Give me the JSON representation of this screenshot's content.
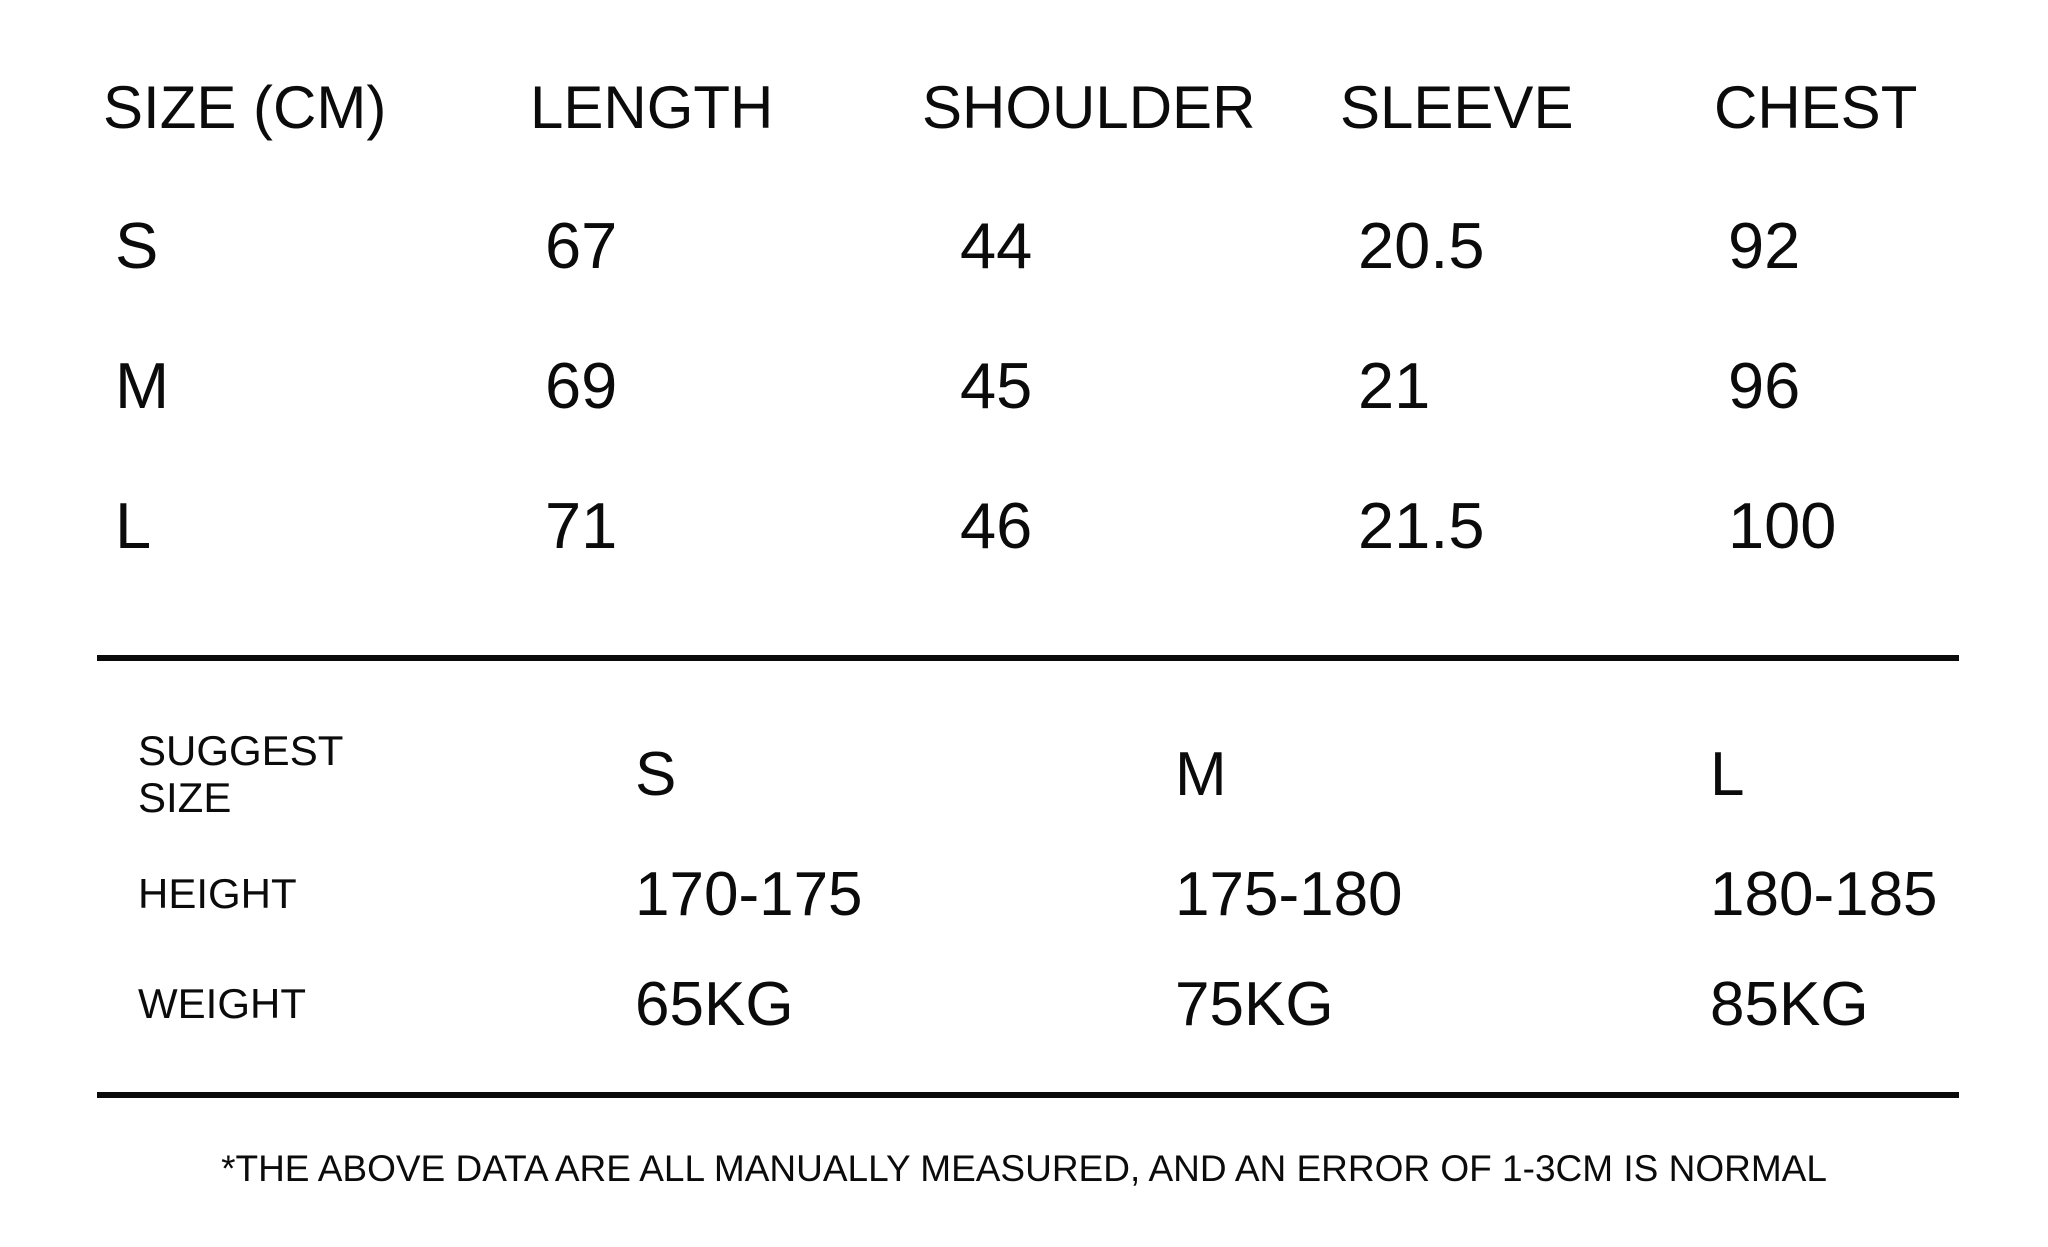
{
  "measurement_table": {
    "header": {
      "size_unit": "SIZE (CM)",
      "length": "LENGTH",
      "shoulder": "SHOULDER",
      "sleeve": "SLEEVE",
      "chest": "CHEST"
    },
    "rows": [
      {
        "size": "S",
        "length": "67",
        "shoulder": "44",
        "sleeve": "20.5",
        "chest": "92"
      },
      {
        "size": "M",
        "length": "69",
        "shoulder": "45",
        "sleeve": "21",
        "chest": "96"
      },
      {
        "size": "L",
        "length": "71",
        "shoulder": "46",
        "sleeve": "21.5",
        "chest": "100"
      }
    ]
  },
  "suggest_table": {
    "row_labels": {
      "suggest": "SUGGEST SIZE",
      "height": "HEIGHT",
      "weight": "WEIGHT"
    },
    "columns": [
      {
        "size": "S",
        "height": "170-175",
        "weight": "65KG"
      },
      {
        "size": "M",
        "height": "175-180",
        "weight": "75KG"
      },
      {
        "size": "L",
        "height": "180-185",
        "weight": "85KG"
      }
    ]
  },
  "footnote": "*THE ABOVE DATA ARE ALL MANUALLY MEASURED, AND AN ERROR OF 1-3CM IS NORMAL",
  "colors": {
    "background": "#ffffff",
    "text": "#0b0b0b",
    "divider": "#0b0b0b"
  },
  "chart_data": [
    {
      "type": "table",
      "title": "SIZE (CM)",
      "columns": [
        "SIZE (CM)",
        "LENGTH",
        "SHOULDER",
        "SLEEVE",
        "CHEST"
      ],
      "rows": [
        [
          "S",
          67,
          44,
          20.5,
          92
        ],
        [
          "M",
          69,
          45,
          21,
          96
        ],
        [
          "L",
          71,
          46,
          21.5,
          100
        ]
      ]
    },
    {
      "type": "table",
      "title": "SUGGEST SIZE",
      "columns": [
        "SUGGEST SIZE",
        "S",
        "M",
        "L"
      ],
      "rows": [
        [
          "HEIGHT",
          "170-175",
          "175-180",
          "180-185"
        ],
        [
          "WEIGHT",
          "65KG",
          "75KG",
          "85KG"
        ]
      ]
    }
  ]
}
